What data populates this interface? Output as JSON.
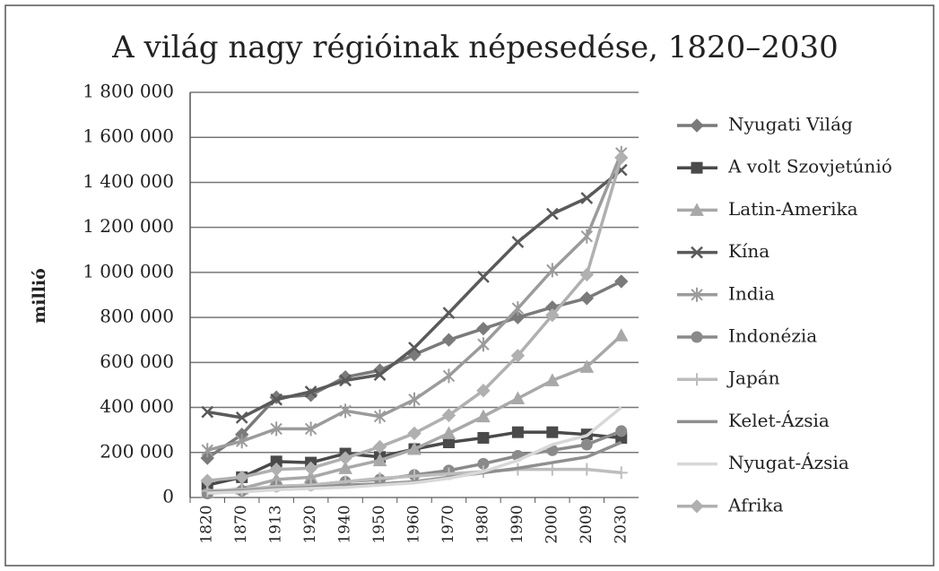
{
  "chart_data": {
    "type": "line",
    "title": "A világ nagy régióinak népesedése, 1820–2030",
    "y_label": "millió",
    "categories": [
      "1820",
      "1870",
      "1913",
      "1920",
      "1940",
      "1950",
      "1960",
      "1970",
      "1980",
      "1990",
      "2000",
      "2009",
      "2030"
    ],
    "ylim": [
      0,
      1800000
    ],
    "yticks": [
      0,
      {
        "value": 200000,
        "label": "200 000"
      },
      {
        "value": 400000,
        "label": "400 000"
      },
      {
        "value": 600000,
        "label": "600 000"
      },
      {
        "value": 800000,
        "label": "800 000"
      },
      {
        "value": 1000000,
        "label": "1 000 000"
      },
      {
        "value": 1200000,
        "label": "1 200 000"
      },
      {
        "value": 1400000,
        "label": "1 400 000"
      },
      {
        "value": 1600000,
        "label": "1 600 000"
      },
      {
        "value": 1800000,
        "label": "1 800 000"
      }
    ],
    "grid": true,
    "legend": "right",
    "series": [
      {
        "name": "Nyugati Világ",
        "color": "#7a7a7a",
        "marker": "diamond",
        "values": [
          175000,
          280000,
          445000,
          455000,
          535000,
          565000,
          635000,
          700000,
          750000,
          800000,
          845000,
          885000,
          960000
        ]
      },
      {
        "name": "A volt Szovjetúnió",
        "color": "#4a4a4a",
        "marker": "square",
        "values": [
          55000,
          90000,
          160000,
          155000,
          195000,
          180000,
          215000,
          245000,
          265000,
          290000,
          290000,
          280000,
          265000
        ]
      },
      {
        "name": "Latin-Amerika",
        "color": "#a8a8a8",
        "marker": "triangle",
        "values": [
          22000,
          40000,
          80000,
          90000,
          130000,
          165000,
          215000,
          285000,
          360000,
          440000,
          520000,
          580000,
          720000
        ]
      },
      {
        "name": "Kína",
        "color": "#5a5a5a",
        "marker": "x",
        "values": [
          380000,
          355000,
          435000,
          470000,
          520000,
          545000,
          665000,
          820000,
          980000,
          1135000,
          1260000,
          1330000,
          1455000
        ]
      },
      {
        "name": "India",
        "color": "#9b9b9b",
        "marker": "star",
        "values": [
          210000,
          250000,
          305000,
          305000,
          385000,
          360000,
          435000,
          540000,
          680000,
          840000,
          1010000,
          1160000,
          1530000
        ]
      },
      {
        "name": "Indonézia",
        "color": "#8a8a8a",
        "marker": "circle",
        "values": [
          18000,
          30000,
          50000,
          55000,
          70000,
          80000,
          100000,
          120000,
          150000,
          185000,
          210000,
          235000,
          295000
        ]
      },
      {
        "name": "Japán",
        "color": "#bdbdbd",
        "marker": "plus",
        "values": [
          30000,
          35000,
          50000,
          55000,
          70000,
          85000,
          95000,
          105000,
          115000,
          125000,
          125000,
          125000,
          110000
        ]
      },
      {
        "name": "Kelet-Ázsia",
        "color": "#8f8f8f",
        "marker": "none",
        "values": [
          25000,
          30000,
          40000,
          45000,
          55000,
          60000,
          70000,
          90000,
          110000,
          130000,
          155000,
          180000,
          245000
        ]
      },
      {
        "name": "Nyugat-Ázsia",
        "color": "#d8d8d8",
        "marker": "none",
        "values": [
          20000,
          25000,
          35000,
          40000,
          45000,
          55000,
          65000,
          85000,
          115000,
          165000,
          235000,
          275000,
          400000
        ]
      },
      {
        "name": "Afrika",
        "color": "#b0b0b0",
        "marker": "diamond",
        "values": [
          75000,
          90000,
          125000,
          130000,
          175000,
          225000,
          285000,
          365000,
          475000,
          630000,
          810000,
          990000,
          1510000
        ]
      }
    ]
  }
}
